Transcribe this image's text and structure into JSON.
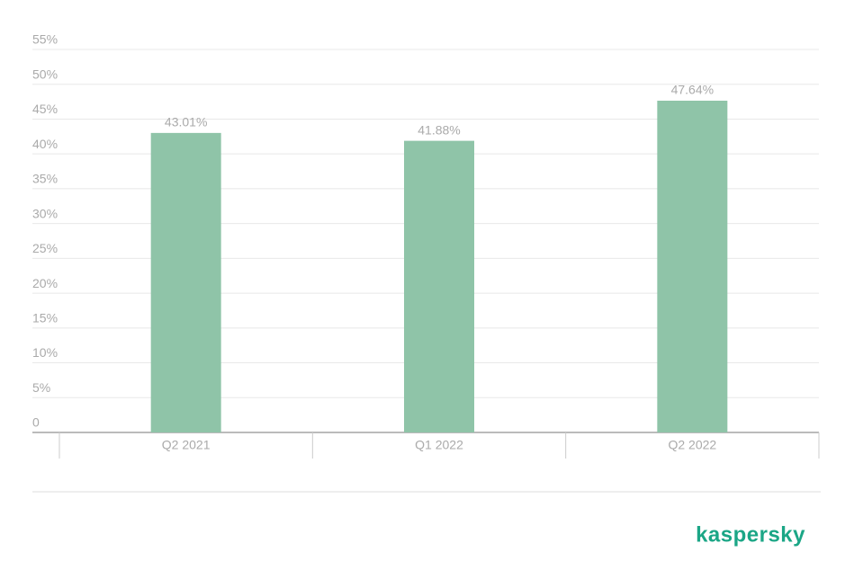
{
  "chart_data": {
    "type": "bar",
    "categories": [
      "Q2 2021",
      "Q1 2022",
      "Q2 2022"
    ],
    "values": [
      43.01,
      41.88,
      47.64
    ],
    "value_labels": [
      "43.01%",
      "41.88%",
      "47.64%"
    ],
    "color": "#8fc4a8",
    "ylim": [
      0,
      55
    ],
    "yticks": [
      0,
      {
        "value": 5,
        "label": "5%"
      },
      {
        "value": 10,
        "label": "10%"
      },
      {
        "value": 15,
        "label": "15%"
      },
      {
        "value": 20,
        "label": "20%"
      },
      {
        "value": 25,
        "label": "25%"
      },
      {
        "value": 30,
        "label": "30%"
      },
      {
        "value": 35,
        "label": "35%"
      },
      {
        "value": 40,
        "label": "40%"
      },
      {
        "value": 45,
        "label": "45%"
      },
      {
        "value": 50,
        "label": "50%"
      },
      {
        "value": 55,
        "label": "55%"
      }
    ],
    "grid": true
  },
  "logo": "kaspersky"
}
